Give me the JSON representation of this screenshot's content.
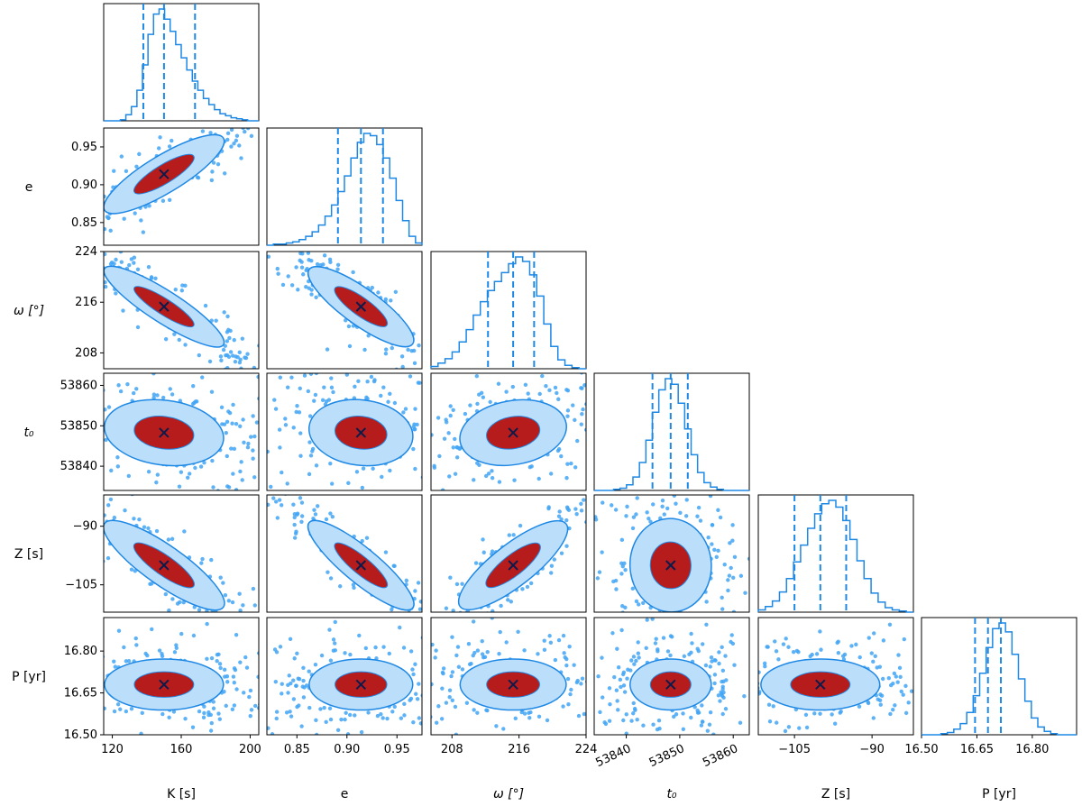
{
  "chart_data": {
    "type": "corner",
    "title": "",
    "colors": {
      "main": "#1e88e5",
      "contour_inner": "#b71c1c",
      "contour_outer": "#bbdefb",
      "scatter": "#42a5f5",
      "marker": "#0d1b4a"
    },
    "parameters": [
      {
        "name": "K",
        "xlabel": "K [s]",
        "ylabel": "",
        "range": [
          115,
          205
        ],
        "ticks": [
          120,
          160,
          200
        ],
        "tick_labels": [
          "120",
          "160",
          "200"
        ],
        "quantiles": [
          138,
          150,
          168
        ],
        "best": 150,
        "hist": [
          0,
          0,
          0,
          1,
          6,
          14,
          30,
          55,
          85,
          105,
          110,
          100,
          88,
          75,
          62,
          50,
          39,
          30,
          22,
          16,
          11,
          7,
          5,
          3,
          2,
          1,
          0,
          0
        ]
      },
      {
        "name": "e",
        "xlabel": "e",
        "ylabel": "e",
        "range": [
          0.82,
          0.975
        ],
        "ticks": [
          0.85,
          0.9,
          0.95
        ],
        "tick_labels": [
          "0.85",
          "0.90",
          "0.95"
        ],
        "quantiles": [
          0.891,
          0.914,
          0.936
        ],
        "best": 0.914,
        "hist": [
          0,
          1,
          1,
          2,
          3,
          5,
          8,
          12,
          18,
          26,
          36,
          48,
          62,
          78,
          92,
          100,
          98,
          90,
          78,
          60,
          40,
          22,
          8,
          2
        ]
      },
      {
        "name": "omega",
        "xlabel": "ω [°]",
        "ylabel": "ω [°]",
        "range": [
          205.5,
          224
        ],
        "ticks": [
          208,
          216,
          224
        ],
        "tick_labels": [
          "208",
          "216",
          "224"
        ],
        "quantiles": [
          212.3,
          215.3,
          217.8
        ],
        "best": 215.3,
        "hist": [
          2,
          5,
          9,
          15,
          24,
          35,
          48,
          60,
          70,
          78,
          86,
          94,
          100,
          96,
          84,
          65,
          40,
          20,
          8,
          3,
          1,
          0
        ]
      },
      {
        "name": "t0",
        "xlabel": "t₀",
        "ylabel": "t₀",
        "range": [
          53834,
          53863
        ],
        "ticks": [
          53840,
          53850,
          53860
        ],
        "tick_labels": [
          "53840",
          "53850",
          "53860"
        ],
        "quantiles": [
          53844.9,
          53848.3,
          53851.5
        ],
        "best": 53848.3,
        "hist": [
          0,
          0,
          0,
          1,
          2,
          5,
          12,
          25,
          45,
          70,
          90,
          100,
          95,
          78,
          55,
          32,
          16,
          7,
          3,
          1,
          0,
          0,
          0,
          0
        ]
      },
      {
        "name": "Z",
        "xlabel": "Z [s]",
        "ylabel": "Z [s]",
        "range": [
          -112,
          -82
        ],
        "ticks": [
          -105,
          -90
        ],
        "tick_labels": [
          "−105",
          "−90"
        ],
        "quantiles": [
          -105,
          -100,
          -95
        ],
        "best": -100,
        "hist": [
          2,
          5,
          10,
          18,
          30,
          45,
          60,
          75,
          88,
          97,
          100,
          94,
          82,
          65,
          46,
          30,
          17,
          9,
          4,
          2,
          1,
          0
        ]
      },
      {
        "name": "P",
        "xlabel": "P [yr]",
        "ylabel": "P [yr]",
        "range": [
          16.5,
          16.92
        ],
        "ticks": [
          16.5,
          16.65,
          16.8
        ],
        "tick_labels": [
          "16.50",
          "16.65",
          "16.80"
        ],
        "quantiles": [
          16.645,
          16.68,
          16.715
        ],
        "best": 16.68,
        "hist": [
          0,
          0,
          0,
          1,
          2,
          5,
          10,
          20,
          35,
          55,
          78,
          95,
          100,
          92,
          72,
          50,
          30,
          15,
          7,
          3,
          1,
          0,
          0,
          0
        ]
      }
    ],
    "pair_spreads": [
      [
        null,
        null,
        null,
        null,
        null,
        null
      ],
      [
        0.92,
        null,
        null,
        null,
        null,
        null
      ],
      [
        -0.95,
        -0.93,
        null,
        null,
        null,
        null
      ],
      [
        -0.25,
        -0.2,
        0.3,
        null,
        null,
        null
      ],
      [
        -0.93,
        -0.95,
        0.92,
        0.05,
        null,
        null
      ],
      [
        0.0,
        0.0,
        0.0,
        0.0,
        0.0,
        null
      ]
    ]
  }
}
